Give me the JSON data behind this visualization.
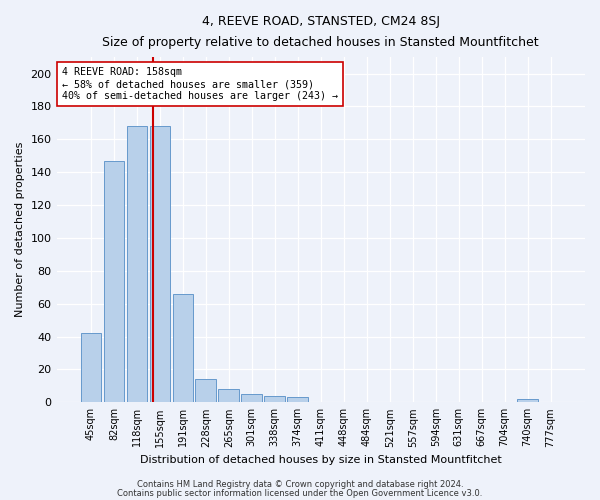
{
  "title": "4, REEVE ROAD, STANSTED, CM24 8SJ",
  "subtitle": "Size of property relative to detached houses in Stansted Mountfitchet",
  "xlabel": "Distribution of detached houses by size in Stansted Mountfitchet",
  "ylabel": "Number of detached properties",
  "bar_labels": [
    "45sqm",
    "82sqm",
    "118sqm",
    "155sqm",
    "191sqm",
    "228sqm",
    "265sqm",
    "301sqm",
    "338sqm",
    "374sqm",
    "411sqm",
    "448sqm",
    "484sqm",
    "521sqm",
    "557sqm",
    "594sqm",
    "631sqm",
    "667sqm",
    "704sqm",
    "740sqm",
    "777sqm"
  ],
  "bar_values": [
    42,
    147,
    168,
    168,
    66,
    14,
    8,
    5,
    4,
    3,
    0,
    0,
    0,
    0,
    0,
    0,
    0,
    0,
    0,
    2,
    0
  ],
  "bar_color": "#b8d0ea",
  "bar_edge_color": "#6699cc",
  "reference_line_x": 3,
  "annotation_text": "4 REEVE ROAD: 158sqm\n← 58% of detached houses are smaller (359)\n40% of semi-detached houses are larger (243) →",
  "ylim": [
    0,
    210
  ],
  "yticks": [
    0,
    20,
    40,
    60,
    80,
    100,
    120,
    140,
    160,
    180,
    200
  ],
  "footer1": "Contains HM Land Registry data © Crown copyright and database right 2024.",
  "footer2": "Contains public sector information licensed under the Open Government Licence v3.0.",
  "background_color": "#eef2fa",
  "plot_bg_color": "#eef2fa"
}
